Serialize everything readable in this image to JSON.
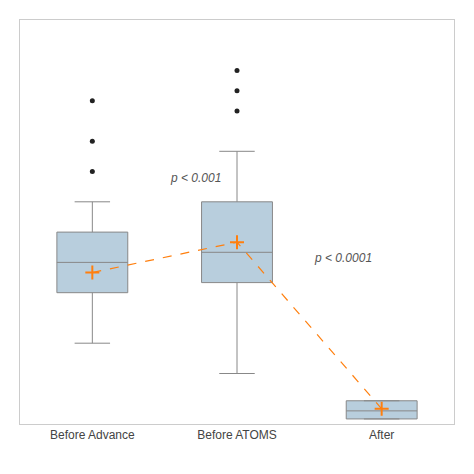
{
  "chart_data": {
    "type": "box",
    "categories": [
      "Before Advance",
      "Before ATOMS",
      "After"
    ],
    "q1": [
      13,
      14,
      0.5
    ],
    "median": [
      16,
      17,
      1.3
    ],
    "q3": [
      19,
      22,
      2.3
    ],
    "whisker_low": [
      8,
      5,
      null
    ],
    "whisker_high": [
      22,
      27,
      null
    ],
    "mean": [
      15,
      18,
      1.5
    ],
    "fliers": [
      [
        25,
        28,
        32
      ],
      [
        31,
        33,
        35
      ],
      []
    ],
    "color": "#b8cedd",
    "annotations": [
      "p < 0.001",
      "p < 0.0001"
    ],
    "ylim": [
      0,
      40
    ],
    "grid": false,
    "tick_labels": "x"
  }
}
